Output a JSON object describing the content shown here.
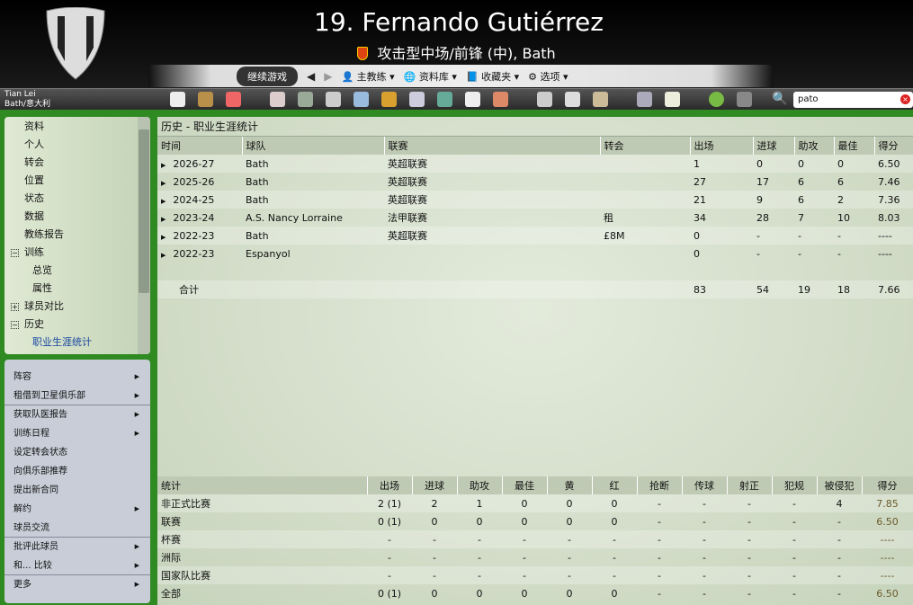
{
  "header": {
    "title": "19. Fernando Gutiérrez",
    "subtitle": "攻击型中场/前锋 (中), Bath"
  },
  "nav": {
    "continue": "继续游戏",
    "manager": "主教练",
    "database": "资料库",
    "bookmarks": "收藏夹",
    "options": "选项"
  },
  "user": {
    "name": "Tian Lei",
    "club": "Bath/意大利"
  },
  "search": {
    "value": "pato"
  },
  "sidebar": {
    "items": [
      {
        "label": "资料",
        "level": 0
      },
      {
        "label": "个人",
        "level": 0
      },
      {
        "label": "转会",
        "level": 0
      },
      {
        "label": "位置",
        "level": 0
      },
      {
        "label": "状态",
        "level": 0
      },
      {
        "label": "数据",
        "level": 0
      },
      {
        "label": "教练报告",
        "level": 0
      },
      {
        "label": "训练",
        "level": 0,
        "toggle": "−"
      },
      {
        "label": "总览",
        "level": 1
      },
      {
        "label": "属性",
        "level": 1
      },
      {
        "label": "球员对比",
        "level": 0,
        "toggle": "+"
      },
      {
        "label": "历史",
        "level": 0,
        "toggle": "−"
      },
      {
        "label": "职业生涯统计",
        "level": 1,
        "active": true
      }
    ]
  },
  "menu": {
    "items": [
      {
        "label": "阵容",
        "arrow": true
      },
      {
        "label": "租借到卫星俱乐部",
        "arrow": true,
        "sep": true
      },
      {
        "label": "获取队医报告",
        "arrow": true
      },
      {
        "label": "训练日程",
        "arrow": true
      },
      {
        "label": "设定转会状态"
      },
      {
        "label": "向俱乐部推荐"
      },
      {
        "label": "提出新合同"
      },
      {
        "label": "解约",
        "arrow": true
      },
      {
        "label": "球员交流",
        "sep": true
      },
      {
        "label": "批评此球员",
        "arrow": true
      },
      {
        "label": "和... 比较",
        "arrow": true,
        "sep": true
      },
      {
        "label": "更多",
        "arrow": true
      }
    ]
  },
  "career": {
    "heading": "历史 - 职业生涯统计",
    "columns": [
      "时间",
      "球队",
      "联赛",
      "转会",
      "出场",
      "进球",
      "助攻",
      "最佳",
      "得分"
    ],
    "rows": [
      [
        "2026-27",
        "Bath",
        "英超联赛",
        "",
        "1",
        "0",
        "0",
        "0",
        "6.50"
      ],
      [
        "2025-26",
        "Bath",
        "英超联赛",
        "",
        "27",
        "17",
        "6",
        "6",
        "7.46"
      ],
      [
        "2024-25",
        "Bath",
        "英超联赛",
        "",
        "21",
        "9",
        "6",
        "2",
        "7.36"
      ],
      [
        "2023-24",
        "A.S. Nancy Lorraine",
        "法甲联赛",
        "租",
        "34",
        "28",
        "7",
        "10",
        "8.03"
      ],
      [
        "2022-23",
        "Bath",
        "英超联赛",
        "£8M",
        "0",
        "-",
        "-",
        "-",
        "----"
      ],
      [
        "2022-23",
        "Espanyol",
        "",
        "",
        "0",
        "-",
        "-",
        "-",
        "----"
      ]
    ],
    "total": [
      "合计",
      "83",
      "54",
      "19",
      "18",
      "7.66"
    ]
  },
  "stats": {
    "columns": [
      "统计",
      "出场",
      "进球",
      "助攻",
      "最佳",
      "黄",
      "红",
      "抢断",
      "传球",
      "射正",
      "犯规",
      "被侵犯",
      "得分"
    ],
    "rows": [
      [
        "非正式比赛",
        "2 (1)",
        "2",
        "1",
        "0",
        "0",
        "0",
        "-",
        "-",
        "-",
        "-",
        "4",
        "7.85"
      ],
      [
        "联赛",
        "0 (1)",
        "0",
        "0",
        "0",
        "0",
        "0",
        "-",
        "-",
        "-",
        "-",
        "-",
        "6.50"
      ],
      [
        "杯赛",
        "-",
        "-",
        "-",
        "-",
        "-",
        "-",
        "-",
        "-",
        "-",
        "-",
        "-",
        "----"
      ],
      [
        "洲际",
        "-",
        "-",
        "-",
        "-",
        "-",
        "-",
        "-",
        "-",
        "-",
        "-",
        "-",
        "----"
      ],
      [
        "国家队比赛",
        "-",
        "-",
        "-",
        "-",
        "-",
        "-",
        "-",
        "-",
        "-",
        "-",
        "-",
        "----"
      ],
      [
        "全部",
        "0 (1)",
        "0",
        "0",
        "0",
        "0",
        "0",
        "-",
        "-",
        "-",
        "-",
        "-",
        "6.50"
      ]
    ]
  }
}
